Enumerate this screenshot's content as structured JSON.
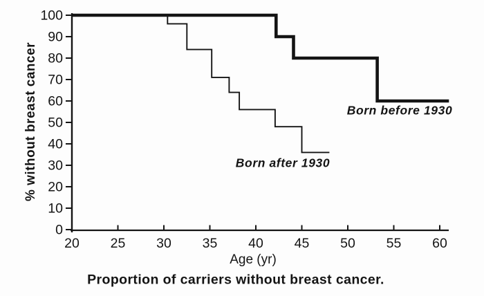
{
  "chart_data": {
    "type": "line",
    "subtype": "kaplan-meier-step",
    "title": "Proportion of carriers without breast cancer.",
    "xlabel": "Age (yr)",
    "ylabel": "% without breast cancer",
    "xlim": [
      20,
      61
    ],
    "ylim": [
      0,
      100
    ],
    "x_ticks": [
      20,
      25,
      30,
      35,
      40,
      45,
      50,
      55,
      60
    ],
    "y_ticks": [
      0,
      10,
      20,
      30,
      40,
      50,
      60,
      70,
      80,
      90,
      100
    ],
    "grid": false,
    "legend_position": "inline-annotations",
    "line_color": "#141414",
    "background_color": "#fdfdfd",
    "series": [
      {
        "name": "Born before 1930",
        "style": "thick",
        "points": [
          [
            20,
            100
          ],
          [
            42.2,
            100
          ],
          [
            42.2,
            90
          ],
          [
            44.1,
            90
          ],
          [
            44.1,
            80
          ],
          [
            53.2,
            80
          ],
          [
            53.2,
            60
          ],
          [
            61,
            60
          ]
        ]
      },
      {
        "name": "Born after 1930",
        "style": "thin",
        "points": [
          [
            20,
            100
          ],
          [
            30.4,
            100
          ],
          [
            30.4,
            96
          ],
          [
            32.5,
            96
          ],
          [
            32.5,
            84
          ],
          [
            35.2,
            84
          ],
          [
            35.2,
            71
          ],
          [
            37.1,
            71
          ],
          [
            37.1,
            64
          ],
          [
            38.2,
            64
          ],
          [
            38.2,
            56
          ],
          [
            42.1,
            56
          ],
          [
            42.1,
            48
          ],
          [
            45,
            48
          ],
          [
            45,
            36
          ],
          [
            48,
            36
          ]
        ]
      }
    ],
    "annotations": [
      {
        "text": "Born before 1930",
        "x": 50.5,
        "y": 55
      },
      {
        "text": "Born after 1930",
        "x": 37.8,
        "y": 31
      }
    ]
  }
}
